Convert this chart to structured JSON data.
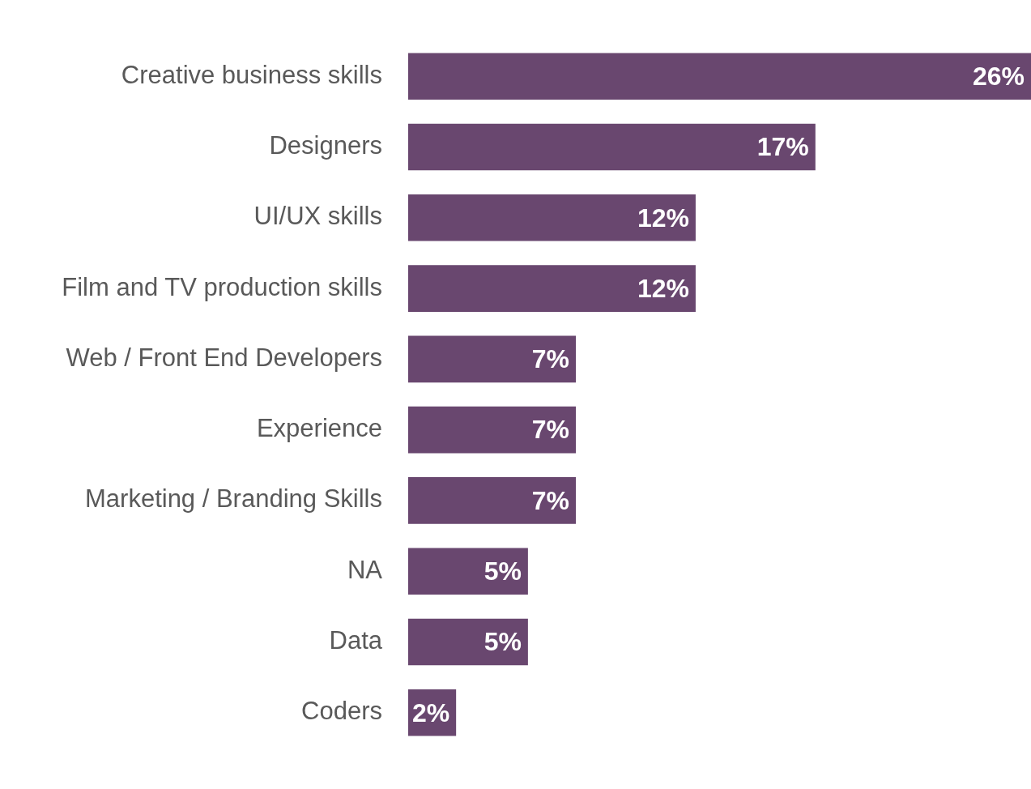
{
  "chart_data": {
    "type": "bar",
    "orientation": "horizontal",
    "categories": [
      "Creative business skills",
      "Designers",
      "UI/UX skills",
      "Film and TV production skills",
      "Web / Front End Developers",
      "Experience",
      "Marketing / Branding Skills",
      "NA",
      "Data",
      "Coders"
    ],
    "values": [
      26,
      17,
      12,
      12,
      7,
      7,
      7,
      5,
      5,
      2
    ],
    "value_labels": [
      "26%",
      "17%",
      "12%",
      "12%",
      "7%",
      "7%",
      "7%",
      "5%",
      "5%",
      "2%"
    ],
    "color": "#69476f",
    "xlim": [
      0,
      26
    ],
    "tick_labels": "y",
    "grid": false,
    "legend": false
  }
}
